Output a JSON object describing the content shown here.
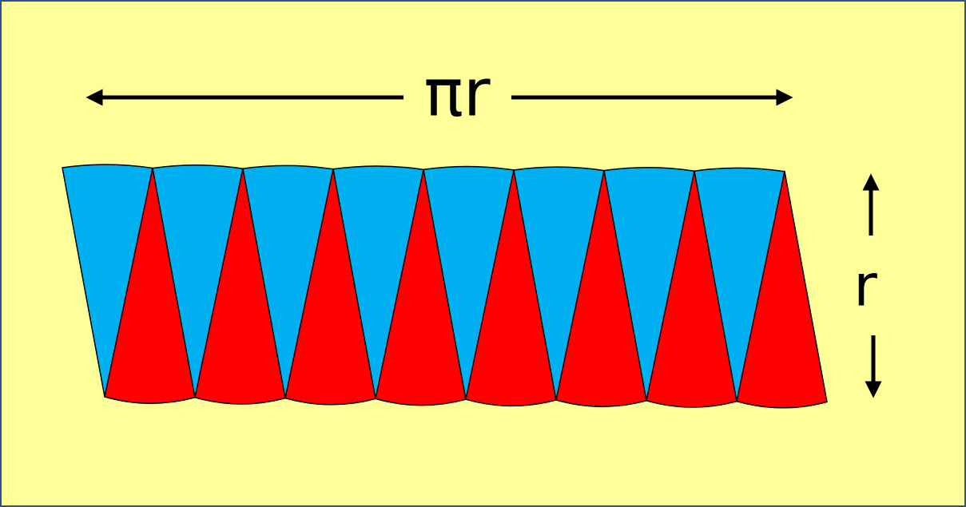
{
  "labels": {
    "width": "πr",
    "height": "r"
  }
}
